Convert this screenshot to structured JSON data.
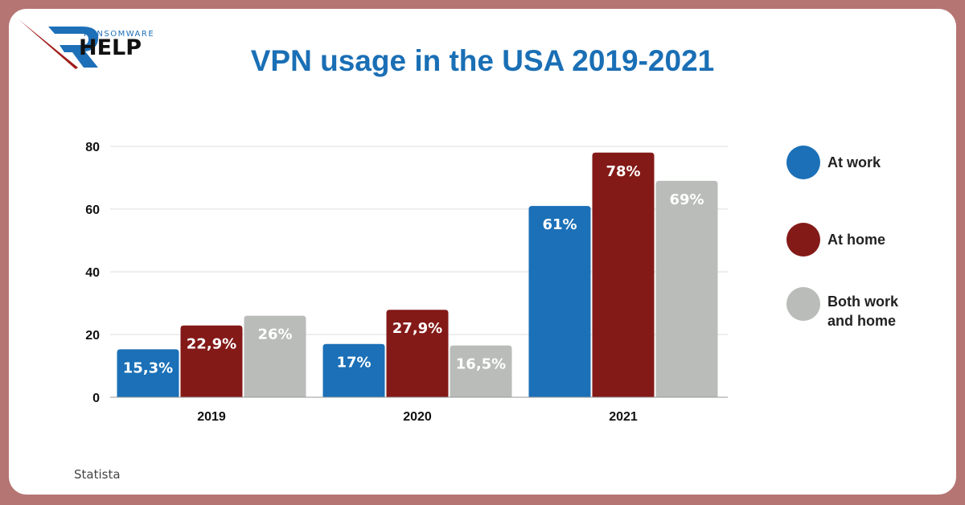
{
  "brand": {
    "small": "RANSOMWARE",
    "big": "HELP"
  },
  "source": "Statista",
  "chart_data": {
    "type": "bar",
    "title": "VPN usage in the USA 2019-2021",
    "xlabel": "",
    "ylabel": "",
    "categories": [
      "2019",
      "2020",
      "2021"
    ],
    "ylim": [
      0,
      80
    ],
    "yticks": [
      0,
      20,
      40,
      60,
      80
    ],
    "grid": true,
    "legend_position": "right",
    "series": [
      {
        "name": "At work",
        "color": "#1b70b7",
        "values": [
          15.3,
          17,
          61
        ],
        "labels": [
          "15,3%",
          "17%",
          "61%"
        ]
      },
      {
        "name": "At home",
        "color": "#831a18",
        "values": [
          22.9,
          27.9,
          78
        ],
        "labels": [
          "22,9%",
          "27,9%",
          "78%"
        ]
      },
      {
        "name": "Both work and home",
        "color": "#b9bcb9",
        "values": [
          26,
          16.5,
          69
        ],
        "labels": [
          "26%",
          "16,5%",
          "69%"
        ]
      }
    ]
  }
}
